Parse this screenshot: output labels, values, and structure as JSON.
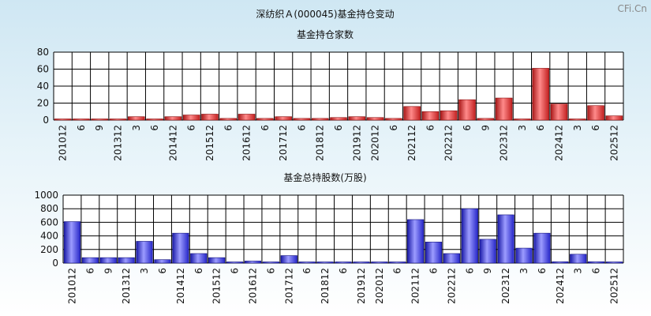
{
  "page": {
    "title": "深纺织Ａ(000045)基金持仓变动",
    "watermark": "CFi.Cn"
  },
  "chart_data": [
    {
      "type": "bar",
      "title": "基金持仓家数",
      "color": "#e23a3a",
      "ylim": [
        0,
        80
      ],
      "yticks": [
        0,
        20,
        40,
        60,
        80
      ],
      "categories": [
        "201012",
        "6",
        "9",
        "201312",
        "3",
        "6",
        "201412",
        "6",
        "201512",
        "6",
        "201612",
        "6",
        "201712",
        "6",
        "201812",
        "6",
        "201912",
        "202012",
        "6",
        "202112",
        "6",
        "202212",
        "6",
        "9",
        "202312",
        "3",
        "6",
        "202412",
        "3",
        "6",
        "202512"
      ],
      "values": [
        1,
        1,
        1,
        1,
        4,
        1,
        4,
        6,
        7,
        2,
        7,
        2,
        4,
        2,
        2,
        3,
        4,
        3,
        2,
        16,
        10,
        11,
        24,
        2,
        26,
        1,
        61,
        19,
        1,
        17,
        5
      ]
    },
    {
      "type": "bar",
      "title": "基金总持股数(万股)",
      "color": "#3b3bdc",
      "ylim": [
        0,
        1000
      ],
      "yticks": [
        0,
        200,
        400,
        600,
        800,
        1000
      ],
      "categories": [
        "201012",
        "6",
        "9",
        "201312",
        "3",
        "6",
        "201412",
        "6",
        "201512",
        "6",
        "201612",
        "6",
        "201712",
        "6",
        "201812",
        "6",
        "201912",
        "202012",
        "6",
        "202112",
        "6",
        "202212",
        "6",
        "9",
        "202312",
        "3",
        "6",
        "202412",
        "3",
        "6",
        "202512"
      ],
      "values": [
        610,
        80,
        80,
        80,
        320,
        50,
        440,
        140,
        80,
        5,
        30,
        5,
        110,
        5,
        5,
        5,
        5,
        5,
        5,
        640,
        310,
        140,
        800,
        350,
        710,
        220,
        440,
        20,
        130,
        20,
        5
      ]
    }
  ]
}
